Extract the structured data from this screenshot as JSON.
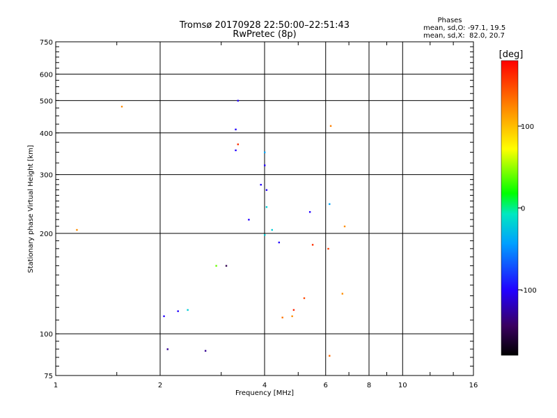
{
  "chart_data": {
    "type": "scatter",
    "title": "Tromsø 20170928 22:50:00–22:51:43",
    "subtitle": "RwPretec (8p)",
    "xlabel": "Frequency [MHz]",
    "ylabel": "Stationary phase Virtual Height [km]",
    "xscale": "log",
    "yscale": "log",
    "xlim": [
      1,
      16
    ],
    "ylim": [
      75,
      750
    ],
    "x_ticks": [
      1,
      2,
      4,
      6,
      8,
      10,
      16
    ],
    "x_tick_labels": [
      "1",
      "2",
      "4",
      "6",
      "8",
      "10",
      "16"
    ],
    "y_ticks": [
      75,
      100,
      200,
      300,
      400,
      500,
      600,
      750
    ],
    "y_tick_labels": [
      "75",
      "100",
      "200",
      "300",
      "400",
      "500",
      "600",
      "750"
    ],
    "grid": true,
    "stats": {
      "heading": "Phases",
      "line_o": "mean, sd,O: -97.1, 19.5",
      "line_x": "mean, sd,X:  82.0, 20.7"
    },
    "colorbar": {
      "label": "[deg]",
      "range": [
        -180,
        180
      ],
      "ticks": [
        100,
        0,
        -100
      ],
      "tick_labels": [
        "100",
        "0",
        "-100"
      ]
    },
    "series": [
      {
        "values": [
          {
            "x": 1.55,
            "y": 480,
            "phase": 120
          },
          {
            "x": 1.15,
            "y": 205,
            "phase": 120
          },
          {
            "x": 2.1,
            "y": 90,
            "phase": -130
          },
          {
            "x": 2.7,
            "y": 89,
            "phase": -130
          },
          {
            "x": 6.15,
            "y": 86,
            "phase": 135
          },
          {
            "x": 6.2,
            "y": 420,
            "phase": 125
          },
          {
            "x": 6.15,
            "y": 245,
            "phase": -40
          },
          {
            "x": 3.35,
            "y": 500,
            "phase": -100
          },
          {
            "x": 3.3,
            "y": 410,
            "phase": -100
          },
          {
            "x": 3.35,
            "y": 370,
            "phase": 160
          },
          {
            "x": 3.3,
            "y": 355,
            "phase": -100
          },
          {
            "x": 4.0,
            "y": 350,
            "phase": -40
          },
          {
            "x": 4.0,
            "y": 320,
            "phase": -100
          },
          {
            "x": 3.9,
            "y": 280,
            "phase": -100
          },
          {
            "x": 4.05,
            "y": 270,
            "phase": -100
          },
          {
            "x": 4.2,
            "y": 205,
            "phase": -20
          },
          {
            "x": 4.0,
            "y": 198,
            "phase": -20
          },
          {
            "x": 4.4,
            "y": 188,
            "phase": -100
          },
          {
            "x": 5.4,
            "y": 232,
            "phase": -100
          },
          {
            "x": 2.05,
            "y": 113,
            "phase": -100
          },
          {
            "x": 2.25,
            "y": 117,
            "phase": -100
          },
          {
            "x": 2.4,
            "y": 118,
            "phase": -20
          },
          {
            "x": 4.5,
            "y": 112,
            "phase": 130
          },
          {
            "x": 4.8,
            "y": 113,
            "phase": 120
          },
          {
            "x": 4.85,
            "y": 118,
            "phase": 165
          },
          {
            "x": 5.2,
            "y": 128,
            "phase": 150
          },
          {
            "x": 6.1,
            "y": 180,
            "phase": 155
          },
          {
            "x": 5.5,
            "y": 185,
            "phase": 160
          },
          {
            "x": 6.8,
            "y": 210,
            "phase": 120
          },
          {
            "x": 6.7,
            "y": 132,
            "phase": 120
          },
          {
            "x": 3.6,
            "y": 220,
            "phase": -100
          },
          {
            "x": 3.1,
            "y": 160,
            "phase": -150
          },
          {
            "x": 2.9,
            "y": 160,
            "phase": 40
          },
          {
            "x": 4.05,
            "y": 240,
            "phase": -20
          }
        ]
      }
    ]
  }
}
